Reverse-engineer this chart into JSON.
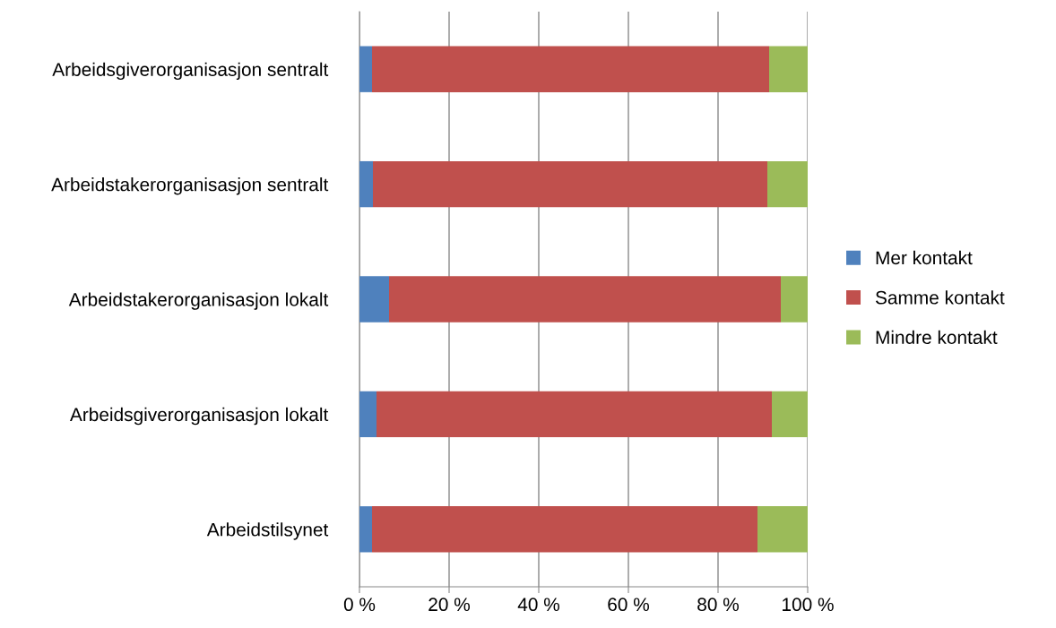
{
  "chart_data": {
    "type": "bar",
    "orientation": "horizontal",
    "stacked": true,
    "categories": [
      "Arbeidsgiverorganisasjon sentralt",
      "Arbeidstakerorganisasjon sentralt",
      "Arbeidstakerorganisasjon lokalt",
      "Arbeidsgiverorganisasjon lokalt",
      "Arbeidstilsynet"
    ],
    "series": [
      {
        "name": "Mer kontakt",
        "color": "#4f81bd",
        "values": [
          2.8,
          3,
          6.6,
          3.8,
          2.8
        ]
      },
      {
        "name": "Samme kontakt",
        "color": "#c0504d",
        "values": [
          88.6,
          88,
          87.4,
          88.2,
          86
        ]
      },
      {
        "name": "Mindre kontakt",
        "color": "#9bbb59",
        "values": [
          8.6,
          9,
          6,
          8,
          11.2
        ]
      }
    ],
    "xlim": [
      0,
      100
    ],
    "xticks": [
      {
        "value": 0,
        "label": "0 %"
      },
      {
        "value": 20,
        "label": "20 %"
      },
      {
        "value": 40,
        "label": "40 %"
      },
      {
        "value": 60,
        "label": "60 %"
      },
      {
        "value": 80,
        "label": "80 %"
      },
      {
        "value": 100,
        "label": "100 %"
      }
    ],
    "grid": "x",
    "legend": "right"
  }
}
